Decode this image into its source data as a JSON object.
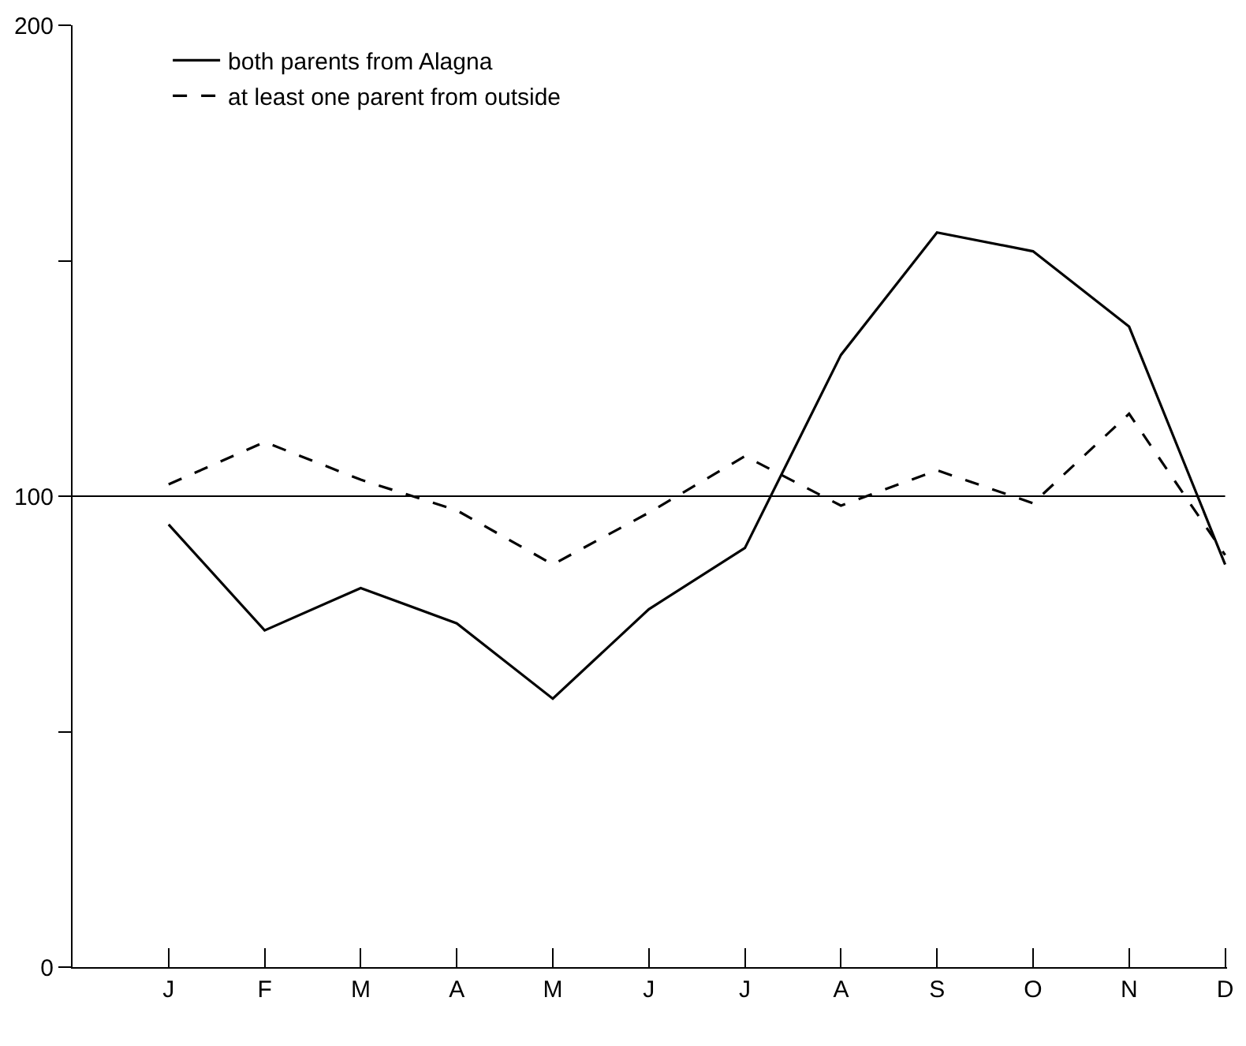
{
  "chart_data": {
    "type": "line",
    "categories": [
      "J",
      "F",
      "M",
      "A",
      "M",
      "J",
      "J",
      "A",
      "S",
      "O",
      "N",
      "D"
    ],
    "series": [
      {
        "name": "both parents from Alagna",
        "color": "#000000",
        "line_style": "solid",
        "values": [
          94,
          71.5,
          80.5,
          73,
          57,
          76,
          89,
          130,
          156,
          152,
          136,
          85.5
        ]
      },
      {
        "name": "at least one parent from outside",
        "color": "#000000",
        "line_style": "dashed",
        "values": [
          102.5,
          111.5,
          103.5,
          97,
          85.5,
          96.5,
          108.5,
          98,
          105.5,
          98.5,
          117.5,
          87.5
        ]
      }
    ],
    "ylim": [
      0,
      200
    ],
    "yticks": [
      0,
      {
        "value": 50,
        "label": null
      },
      100,
      {
        "value": 150,
        "label": null
      },
      200
    ],
    "ref_lines": [
      {
        "axis": "y",
        "value": 100,
        "color": "#000000"
      }
    ],
    "legend": "top left",
    "marker": "none"
  }
}
